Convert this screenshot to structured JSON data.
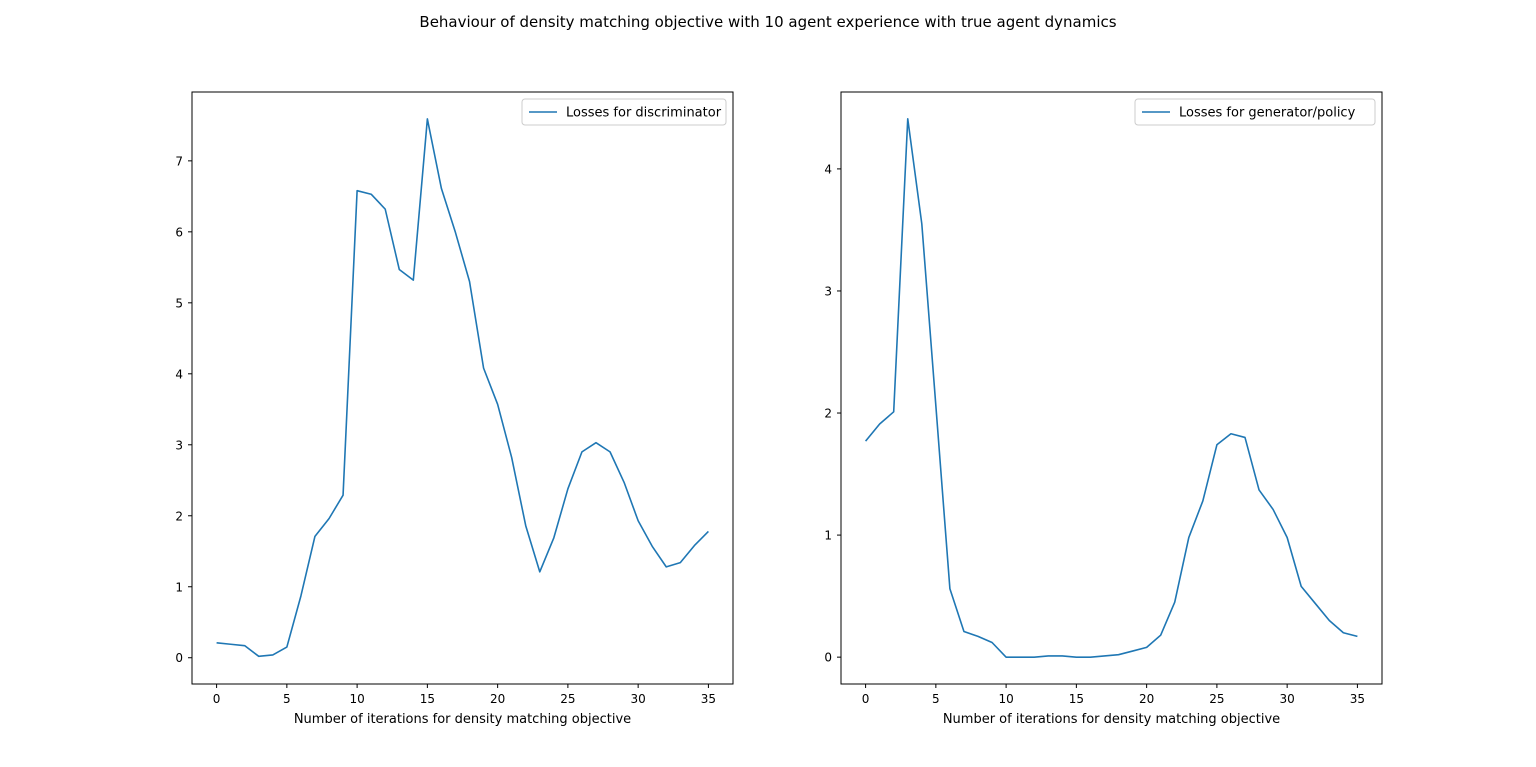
{
  "figure": {
    "suptitle": "Behaviour of density matching objective with 10 agent experience with true agent dynamics"
  },
  "chart_data": [
    {
      "type": "line",
      "title": "",
      "xlabel": "Number of iterations for density matching objective",
      "ylabel": "",
      "xlim": [
        -1.75,
        36.75
      ],
      "ylim": [
        -0.37,
        7.97
      ],
      "xticks": [
        0,
        5,
        10,
        15,
        20,
        25,
        30,
        35
      ],
      "yticks": [
        0,
        1,
        2,
        3,
        4,
        5,
        6,
        7
      ],
      "grid": false,
      "legend_position": "upper right",
      "series": [
        {
          "name": "Losses for discriminator",
          "color": "#1f77b4",
          "x": [
            0,
            1,
            2,
            3,
            4,
            5,
            6,
            7,
            8,
            9,
            10,
            11,
            12,
            13,
            14,
            15,
            16,
            17,
            18,
            19,
            20,
            21,
            22,
            23,
            24,
            25,
            26,
            27,
            28,
            29,
            30,
            31,
            32,
            33,
            34,
            35
          ],
          "y": [
            0.21,
            0.19,
            0.17,
            0.02,
            0.04,
            0.15,
            0.87,
            1.71,
            1.96,
            2.29,
            6.58,
            6.53,
            6.32,
            5.47,
            5.32,
            7.59,
            6.61,
            5.99,
            5.3,
            4.08,
            3.57,
            2.82,
            1.86,
            1.21,
            1.69,
            2.38,
            2.9,
            3.03,
            2.9,
            2.47,
            1.93,
            1.57,
            1.28,
            1.34,
            1.58,
            1.78
          ]
        }
      ]
    },
    {
      "type": "line",
      "title": "",
      "xlabel": "Number of iterations for density matching objective",
      "ylabel": "",
      "xlim": [
        -1.75,
        36.75
      ],
      "ylim": [
        -0.22,
        4.63
      ],
      "xticks": [
        0,
        5,
        10,
        15,
        20,
        25,
        30,
        35
      ],
      "yticks": [
        0,
        1,
        2,
        3,
        4
      ],
      "grid": false,
      "legend_position": "upper right",
      "series": [
        {
          "name": "Losses for generator/policy",
          "color": "#1f77b4",
          "x": [
            0,
            1,
            2,
            3,
            4,
            5,
            6,
            7,
            8,
            9,
            10,
            11,
            12,
            13,
            14,
            15,
            16,
            17,
            18,
            19,
            20,
            21,
            22,
            23,
            24,
            25,
            26,
            27,
            28,
            29,
            30,
            31,
            32,
            33,
            34,
            35
          ],
          "y": [
            1.77,
            1.91,
            2.01,
            4.41,
            3.55,
            2.06,
            0.56,
            0.21,
            0.17,
            0.12,
            0.0,
            0.0,
            0.0,
            0.01,
            0.01,
            0.0,
            0.0,
            0.01,
            0.02,
            0.05,
            0.08,
            0.18,
            0.45,
            0.98,
            1.28,
            1.74,
            1.83,
            1.8,
            1.37,
            1.21,
            0.98,
            0.58,
            0.44,
            0.3,
            0.2,
            0.17
          ]
        }
      ]
    }
  ]
}
